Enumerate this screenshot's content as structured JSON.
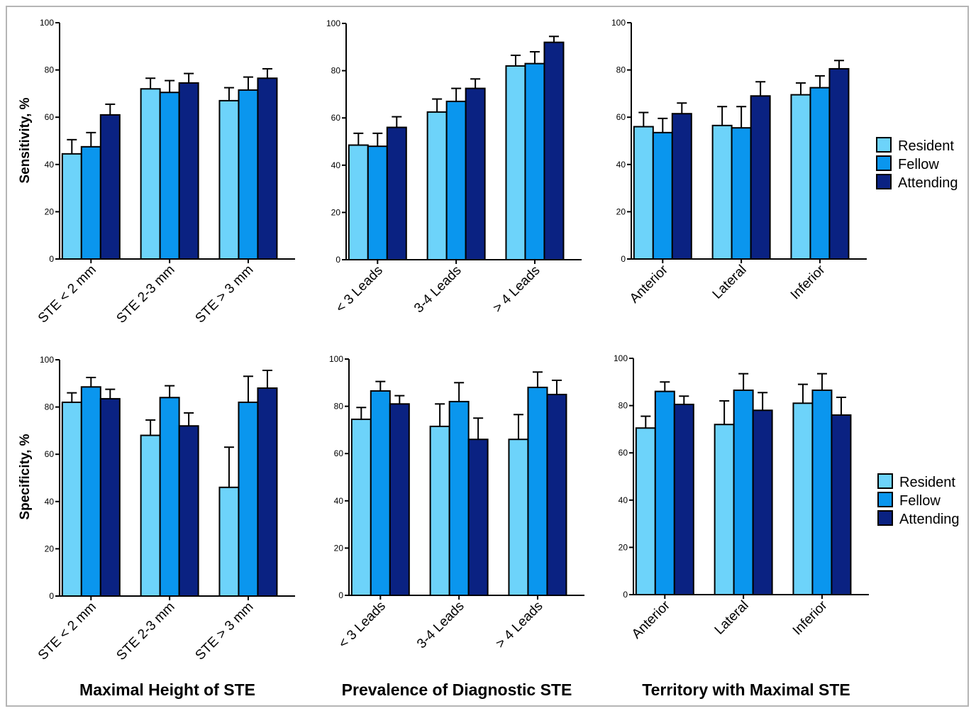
{
  "colors": {
    "Resident": "#6dd3fa",
    "Fellow": "#0a96ee",
    "Attending": "#0a2282"
  },
  "legend": [
    "Resident",
    "Fellow",
    "Attending"
  ],
  "row_labels": [
    "Sensitivity, %",
    "Specificity, %"
  ],
  "column_titles": [
    "Maximal Height of STE",
    "Prevalence of Diagnostic STE",
    "Territory with Maximal STE"
  ],
  "chart_data": [
    {
      "type": "bar",
      "ylabel": "Sensitivity, %",
      "xlabel": "",
      "ylim": [
        0,
        100
      ],
      "yticks": [
        0,
        20,
        40,
        60,
        80,
        100
      ],
      "categories": [
        "STE < 2 mm",
        "STE 2-3 mm",
        "STE > 3 mm"
      ],
      "series": [
        {
          "name": "Resident",
          "values": [
            44.5,
            72,
            67
          ],
          "errors": [
            6,
            4.5,
            5.5
          ]
        },
        {
          "name": "Fellow",
          "values": [
            47.5,
            70.5,
            71.5
          ],
          "errors": [
            6,
            5,
            5.5
          ]
        },
        {
          "name": "Attending",
          "values": [
            61,
            74.5,
            76.5
          ],
          "errors": [
            4.5,
            4,
            4
          ]
        }
      ]
    },
    {
      "type": "bar",
      "ylabel": "",
      "xlabel": "",
      "ylim": [
        0,
        100
      ],
      "yticks": [
        0,
        20,
        40,
        60,
        80,
        100
      ],
      "categories": [
        "< 3 Leads",
        "3-4 Leads",
        "> 4 Leads"
      ],
      "series": [
        {
          "name": "Resident",
          "values": [
            48.5,
            62.5,
            82
          ],
          "errors": [
            5,
            5.5,
            4.5
          ]
        },
        {
          "name": "Fellow",
          "values": [
            48,
            67,
            83
          ],
          "errors": [
            5.5,
            5.5,
            5
          ]
        },
        {
          "name": "Attending",
          "values": [
            56,
            72.5,
            92
          ],
          "errors": [
            4.5,
            4,
            2.5
          ]
        }
      ]
    },
    {
      "type": "bar",
      "ylabel": "",
      "xlabel": "",
      "ylim": [
        0,
        100
      ],
      "yticks": [
        0,
        20,
        40,
        60,
        80,
        100
      ],
      "categories": [
        "Anterior",
        "Lateral",
        "Inferior"
      ],
      "series": [
        {
          "name": "Resident",
          "values": [
            56,
            56.5,
            69.5
          ],
          "errors": [
            6,
            8,
            5
          ]
        },
        {
          "name": "Fellow",
          "values": [
            53.5,
            55.5,
            72.5
          ],
          "errors": [
            6,
            9,
            5
          ]
        },
        {
          "name": "Attending",
          "values": [
            61.5,
            69,
            80.5
          ],
          "errors": [
            4.5,
            6,
            3.5
          ]
        }
      ]
    },
    {
      "type": "bar",
      "ylabel": "Specificity, %",
      "xlabel": "Maximal Height of STE",
      "ylim": [
        0,
        100
      ],
      "yticks": [
        0,
        20,
        40,
        60,
        80,
        100
      ],
      "categories": [
        "STE < 2 mm",
        "STE 2-3 mm",
        "STE > 3 mm"
      ],
      "series": [
        {
          "name": "Resident",
          "values": [
            82,
            68,
            46
          ],
          "errors": [
            4,
            6.5,
            17
          ]
        },
        {
          "name": "Fellow",
          "values": [
            88.5,
            84,
            82
          ],
          "errors": [
            4,
            5,
            11
          ]
        },
        {
          "name": "Attending",
          "values": [
            83.5,
            72,
            88
          ],
          "errors": [
            4,
            5.5,
            7.5
          ]
        }
      ]
    },
    {
      "type": "bar",
      "ylabel": "",
      "xlabel": "Prevalence of Diagnostic STE",
      "ylim": [
        0,
        100
      ],
      "yticks": [
        0,
        20,
        40,
        60,
        80,
        100
      ],
      "categories": [
        "< 3 Leads",
        "3-4 Leads",
        "> 4 Leads"
      ],
      "series": [
        {
          "name": "Resident",
          "values": [
            74.5,
            71.5,
            66
          ],
          "errors": [
            5,
            9.5,
            10.5
          ]
        },
        {
          "name": "Fellow",
          "values": [
            86.5,
            82,
            88
          ],
          "errors": [
            4,
            8,
            6.5
          ]
        },
        {
          "name": "Attending",
          "values": [
            81,
            66,
            85
          ],
          "errors": [
            3.5,
            9,
            6
          ]
        }
      ]
    },
    {
      "type": "bar",
      "ylabel": "",
      "xlabel": "Territory with Maximal STE",
      "ylim": [
        0,
        100
      ],
      "yticks": [
        0,
        20,
        40,
        60,
        80,
        100
      ],
      "categories": [
        "Anterior",
        "Lateral",
        "Inferior"
      ],
      "series": [
        {
          "name": "Resident",
          "values": [
            70.5,
            72,
            81
          ],
          "errors": [
            5,
            10,
            8
          ]
        },
        {
          "name": "Fellow",
          "values": [
            86,
            86.5,
            86.5
          ],
          "errors": [
            4,
            7,
            7
          ]
        },
        {
          "name": "Attending",
          "values": [
            80.5,
            78,
            76
          ],
          "errors": [
            3.5,
            7.5,
            7.5
          ]
        }
      ]
    }
  ]
}
